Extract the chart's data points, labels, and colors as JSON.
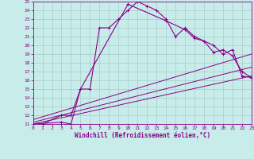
{
  "xlabel": "Windchill (Refroidissement éolien,°C)",
  "bg_color": "#c8ecea",
  "grid_color": "#a8ccca",
  "line_color": "#880088",
  "xlim": [
    0,
    23
  ],
  "ylim": [
    11,
    25
  ],
  "x_ticks": [
    0,
    1,
    2,
    3,
    4,
    5,
    6,
    7,
    8,
    9,
    10,
    11,
    12,
    13,
    14,
    15,
    16,
    17,
    18,
    19,
    20,
    21,
    22,
    23
  ],
  "y_ticks": [
    11,
    12,
    13,
    14,
    15,
    16,
    17,
    18,
    19,
    20,
    21,
    22,
    23,
    24,
    25
  ],
  "curve1_x": [
    0,
    1,
    3,
    4,
    5,
    6,
    7,
    8,
    9,
    10,
    11,
    12,
    13,
    14,
    15,
    16,
    17,
    18,
    19,
    20,
    21,
    22,
    23
  ],
  "curve1_y": [
    11,
    11,
    12,
    12,
    15,
    15,
    22,
    22,
    23,
    24,
    25,
    24.5,
    24,
    23,
    21,
    22,
    21,
    20.5,
    20,
    19,
    19.5,
    16.5,
    16.3
  ],
  "curve2_x": [
    0,
    3,
    4,
    5,
    10,
    14,
    16,
    17,
    18,
    19,
    20,
    21,
    22,
    23
  ],
  "curve2_y": [
    11,
    11.2,
    11,
    15,
    24.7,
    22.8,
    21.8,
    20.8,
    20.5,
    19.2,
    19.5,
    18.8,
    17.0,
    16.3
  ],
  "line1_x": [
    0,
    23
  ],
  "line1_y": [
    11,
    16.5
  ],
  "line2_x": [
    0,
    23
  ],
  "line2_y": [
    11.5,
    19.0
  ],
  "line3_x": [
    0,
    23
  ],
  "line3_y": [
    11.2,
    17.5
  ]
}
